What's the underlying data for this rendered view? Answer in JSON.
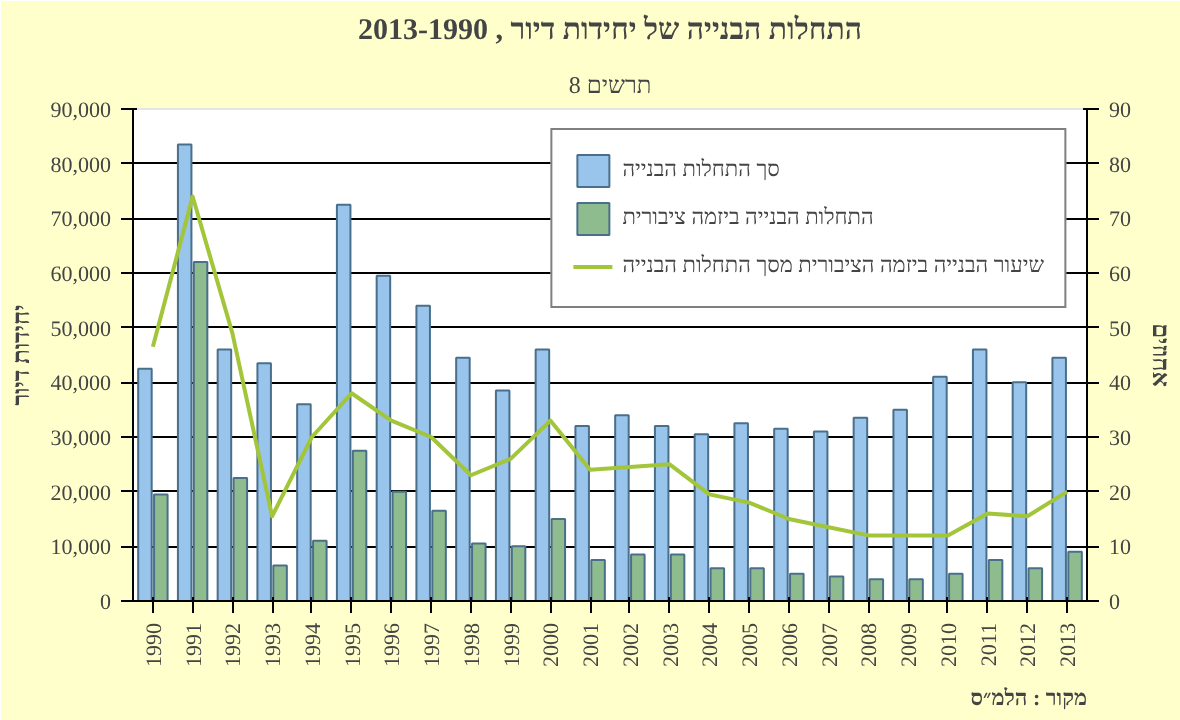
{
  "chart_data": {
    "type": "bar",
    "subtitle": "תרשים 8",
    "title": "התחלות הבנייה של יחידות דיור , 2013-1990",
    "ylabel": "יחידות דיור",
    "y2label": "אחוזים",
    "categories": [
      "1990",
      "1991",
      "1992",
      "1993",
      "1994",
      "1995",
      "1996",
      "1997",
      "1998",
      "1999",
      "2000",
      "2001",
      "2002",
      "2003",
      "2004",
      "2005",
      "2006",
      "2007",
      "2008",
      "2009",
      "2010",
      "2011",
      "2012",
      "2013"
    ],
    "series": [
      {
        "name": "סך התחלות הבנייה",
        "color": "#99c4ec",
        "values": [
          42500,
          83500,
          46000,
          43500,
          36000,
          72500,
          59500,
          54000,
          44500,
          38500,
          46000,
          32000,
          34000,
          32000,
          30500,
          32500,
          31500,
          31000,
          33500,
          35000,
          41000,
          46000,
          40000,
          44500
        ]
      },
      {
        "name": "התחלות הבנייה ביזמה ציבורית",
        "color": "#8fbc8f",
        "values": [
          19500,
          62000,
          22500,
          6500,
          11000,
          27500,
          20000,
          16500,
          10500,
          10000,
          15000,
          7500,
          8500,
          8500,
          6000,
          6000,
          5000,
          4500,
          4000,
          4000,
          5000,
          7500,
          6000,
          9000
        ]
      },
      {
        "name": "שיעור הבנייה ביזמה הציבורית מסך התחלות הבנייה",
        "type": "line",
        "axis": "y2",
        "color": "#a2c53a",
        "values": [
          46.5,
          74,
          49,
          15.5,
          30,
          38,
          33,
          30,
          23,
          26,
          33,
          24,
          24.5,
          25,
          19.5,
          18,
          15,
          13.5,
          12,
          12,
          12,
          16,
          15.5,
          20
        ]
      }
    ],
    "ylim": [
      0,
      90000
    ],
    "yticks": [
      {
        "value": 0,
        "label": "0"
      },
      {
        "value": 10000,
        "label": "10,000"
      },
      {
        "value": 20000,
        "label": "20,000"
      },
      {
        "value": 30000,
        "label": "30,000"
      },
      {
        "value": 40000,
        "label": "40,000"
      },
      {
        "value": 50000,
        "label": "50,000"
      },
      {
        "value": 60000,
        "label": "60,000"
      },
      {
        "value": 70000,
        "label": "70,000"
      },
      {
        "value": 80000,
        "label": "80,000"
      },
      {
        "value": 90000,
        "label": "90,000"
      }
    ],
    "y2lim": [
      0,
      90
    ],
    "y2ticks": [
      0,
      10,
      20,
      30,
      40,
      50,
      60,
      70,
      80,
      90
    ],
    "grid": "y",
    "legend": "top right",
    "annotations": [
      "מקור : הלמ״ס"
    ]
  }
}
